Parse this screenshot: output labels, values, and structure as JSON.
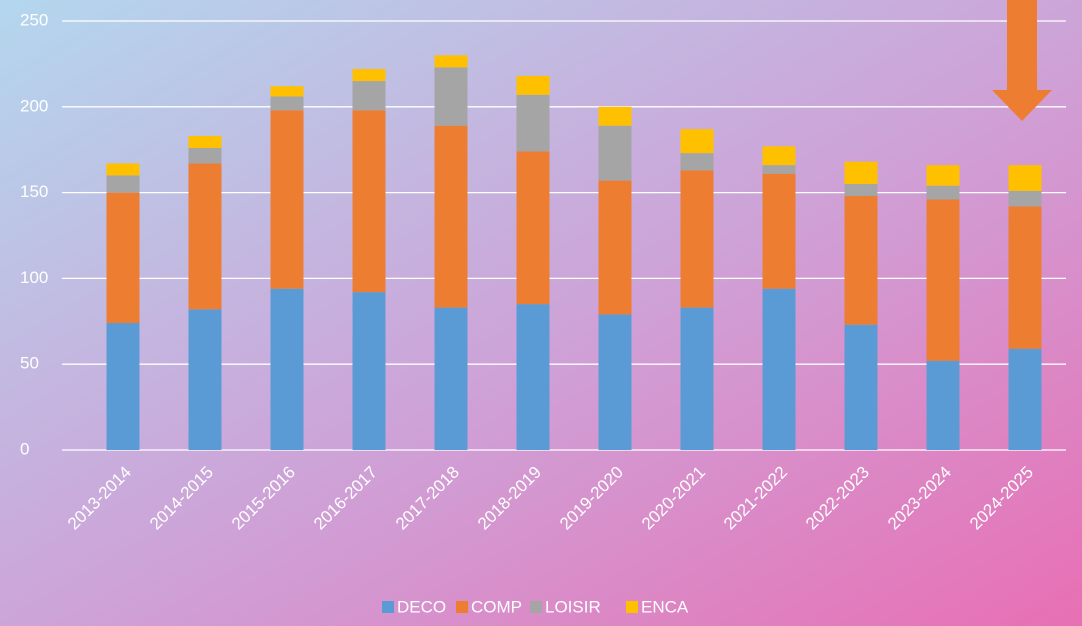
{
  "chart_data": {
    "type": "stacked_bar",
    "categories": [
      "2013-2014",
      "2014-2015",
      "2015-2016",
      "2016-2017",
      "2017-2018",
      "2018-2019",
      "2019-2020",
      "2020-2021",
      "2021-2022",
      "2022-2023",
      "2023-2024",
      "2024-2025"
    ],
    "series": [
      {
        "name": "DECO",
        "color": "#5b9bd5",
        "values": [
          74,
          82,
          94,
          92,
          83,
          85,
          79,
          83,
          94,
          73,
          52,
          59
        ]
      },
      {
        "name": "COMP",
        "color": "#ed7d31",
        "values": [
          76,
          85,
          104,
          106,
          106,
          89,
          78,
          80,
          67,
          75,
          94,
          83
        ]
      },
      {
        "name": "LOISIR",
        "color": "#a5a5a5",
        "values": [
          10,
          9,
          8,
          17,
          34,
          33,
          32,
          10,
          5,
          7,
          8,
          9
        ]
      },
      {
        "name": "ENCA",
        "color": "#ffc000",
        "values": [
          7,
          7,
          6,
          7,
          7,
          11,
          11,
          14,
          11,
          13,
          12,
          15
        ]
      }
    ],
    "ylim": [
      0,
      250
    ],
    "yticks": [
      0,
      50,
      100,
      150,
      200,
      250
    ],
    "grid": true,
    "legend": "bottom"
  }
}
